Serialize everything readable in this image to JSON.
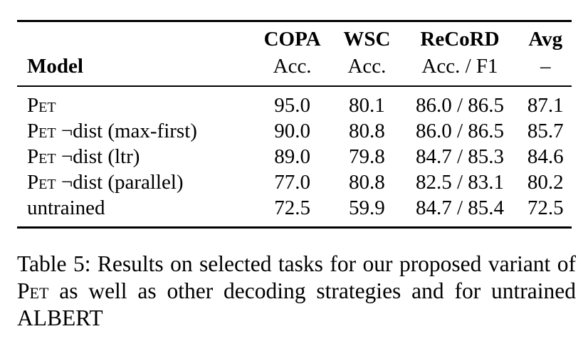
{
  "table": {
    "header": {
      "datasets": [
        "COPA",
        "WSC",
        "ReCoRD",
        "Avg"
      ],
      "model_label": "Model",
      "metrics": [
        "Acc.",
        "Acc.",
        "Acc. / F1",
        "–"
      ]
    },
    "rows": [
      {
        "model_prefix": "Pet",
        "model_suffix": "",
        "copa": "95.0",
        "wsc": "80.1",
        "record": "86.0 / 86.5",
        "avg": "87.1"
      },
      {
        "model_prefix": "Pet",
        "model_suffix": " ¬dist (max-first)",
        "copa": "90.0",
        "wsc": "80.8",
        "record": "86.0 / 86.5",
        "avg": "85.7"
      },
      {
        "model_prefix": "Pet",
        "model_suffix": " ¬dist (ltr)",
        "copa": "89.0",
        "wsc": "79.8",
        "record": "84.7 / 85.3",
        "avg": "84.6"
      },
      {
        "model_prefix": "Pet",
        "model_suffix": " ¬dist (parallel)",
        "copa": "77.0",
        "wsc": "80.8",
        "record": "82.5 / 83.1",
        "avg": "80.2"
      },
      {
        "model_prefix": "",
        "model_suffix": "untrained",
        "copa": "72.5",
        "wsc": "59.9",
        "record": "84.7 / 85.4",
        "avg": "72.5"
      }
    ]
  },
  "caption": {
    "part1": "Table 5: Results on selected tasks for our proposed variant of ",
    "pet": "Pet",
    "part2": " as well as other decoding strategies and for untrained ALBERT"
  }
}
